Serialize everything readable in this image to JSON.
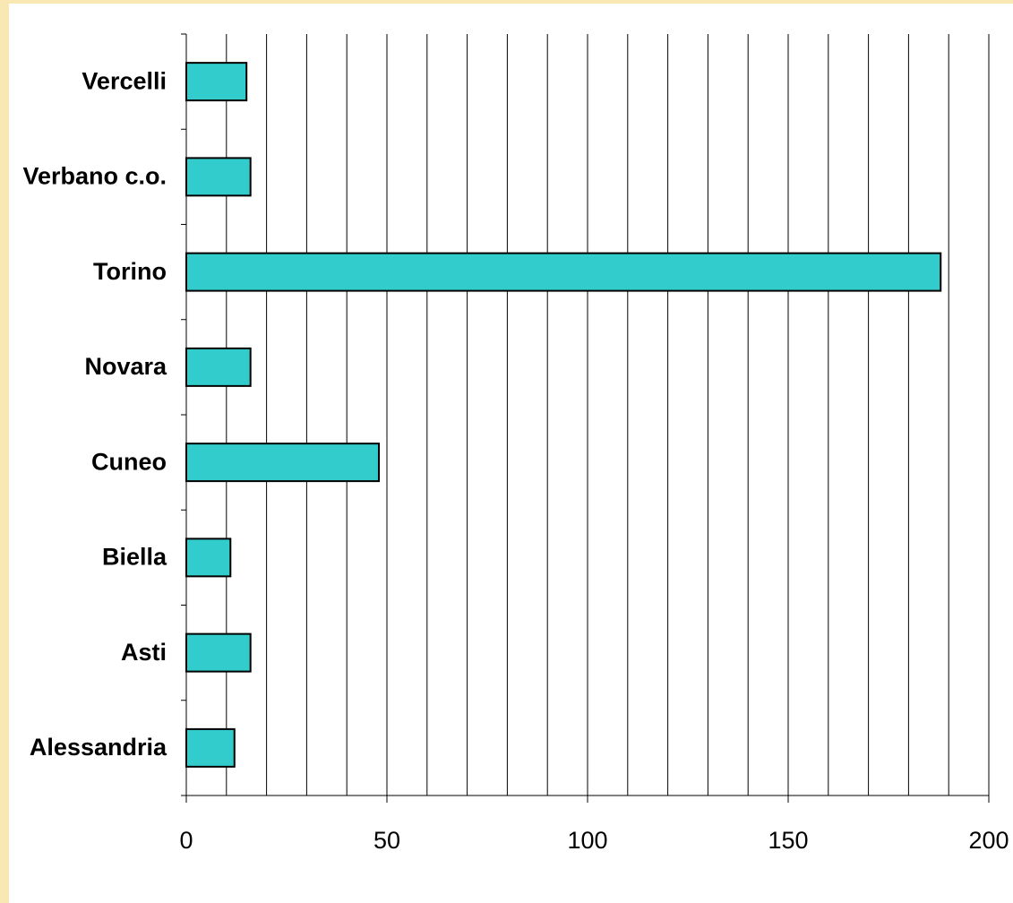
{
  "chart_data": {
    "type": "bar",
    "orientation": "horizontal",
    "categories": [
      "Alessandria",
      "Asti",
      "Biella",
      "Cuneo",
      "Novara",
      "Torino",
      "Verbano c.o.",
      "Vercelli"
    ],
    "values": [
      12,
      16,
      11,
      48,
      16,
      188,
      16,
      15
    ],
    "title": "",
    "xlabel": "",
    "ylabel": "",
    "xlim": [
      0,
      200
    ],
    "x_ticks": [
      0,
      50,
      100,
      150,
      200
    ],
    "x_tick_labels": [
      "0",
      "50",
      "100",
      "150",
      "200"
    ],
    "grid": "vertical lines every 10",
    "legend": "none"
  },
  "colors": {
    "bar_fill": "#33cccc",
    "bar_stroke": "#000000",
    "grid": "#000000",
    "background": "#fae8b4",
    "plot_background": "#ffffff"
  }
}
